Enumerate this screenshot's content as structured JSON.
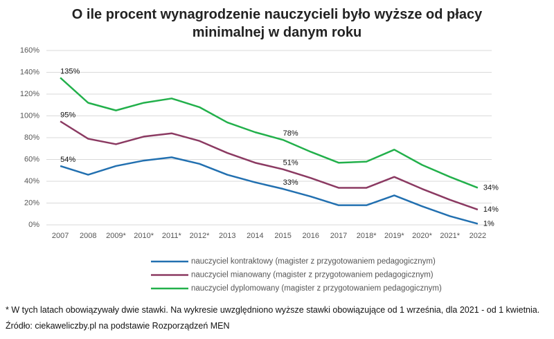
{
  "chart_data": {
    "type": "line",
    "title": "O ile procent wynagrodzenie nauczycieli było wyższe od płacy minimalnej w danym roku",
    "categories": [
      "2007",
      "2008",
      "2009*",
      "2010*",
      "2011*",
      "2012*",
      "2013",
      "2014",
      "2015",
      "2016",
      "2017",
      "2018*",
      "2019*",
      "2020*",
      "2021*",
      "2022"
    ],
    "series": [
      {
        "name": "nauczyciel kontraktowy (magister z przygotowaniem pedagogicznym)",
        "color": "#2270b0",
        "values": [
          54,
          46,
          54,
          59,
          62,
          56,
          46,
          39,
          33,
          26,
          18,
          18,
          27,
          17,
          8,
          1
        ],
        "value_labels": [
          "54%",
          null,
          null,
          null,
          null,
          null,
          null,
          null,
          "33%",
          null,
          null,
          null,
          null,
          null,
          null,
          "1%"
        ]
      },
      {
        "name": "nauczyciel mianowany (magister z przygotowaniem pedagogicznym)",
        "color": "#8b3a62",
        "values": [
          95,
          79,
          74,
          81,
          84,
          77,
          66,
          57,
          51,
          43,
          34,
          34,
          44,
          33,
          23,
          14
        ],
        "value_labels": [
          "95%",
          null,
          null,
          null,
          null,
          null,
          null,
          null,
          "51%",
          null,
          null,
          null,
          null,
          null,
          null,
          "14%"
        ]
      },
      {
        "name": "nauczyciel dyplomowany (magister z przygotowaniem pedagogicznym)",
        "color": "#22b04b",
        "values": [
          135,
          112,
          105,
          112,
          116,
          108,
          94,
          85,
          78,
          67,
          57,
          58,
          69,
          55,
          44,
          34
        ],
        "value_labels": [
          "135%",
          null,
          null,
          null,
          null,
          null,
          null,
          null,
          "78%",
          null,
          null,
          null,
          null,
          null,
          null,
          "34%"
        ]
      }
    ],
    "ylim": [
      0,
      160
    ],
    "yticks": [
      {
        "value": 0,
        "label": "0%"
      },
      {
        "value": 20,
        "label": "20%"
      },
      {
        "value": 40,
        "label": "40%"
      },
      {
        "value": 60,
        "label": "60%"
      },
      {
        "value": 80,
        "label": "80%"
      },
      {
        "value": 100,
        "label": "100%"
      },
      {
        "value": 120,
        "label": "120%"
      },
      {
        "value": 140,
        "label": "140%"
      },
      {
        "value": 160,
        "label": "160%"
      }
    ],
    "grid": true,
    "legend": "bottom",
    "note": "* W tych latach obowiązywały dwie stawki. Na wykresie uwzględniono wyższe stawki obowiązujące od 1 września, dla 2021 - od 1 kwietnia.",
    "source": "Źródło: ciekaweliczby.pl na podstawie Rozporządzeń MEN"
  }
}
